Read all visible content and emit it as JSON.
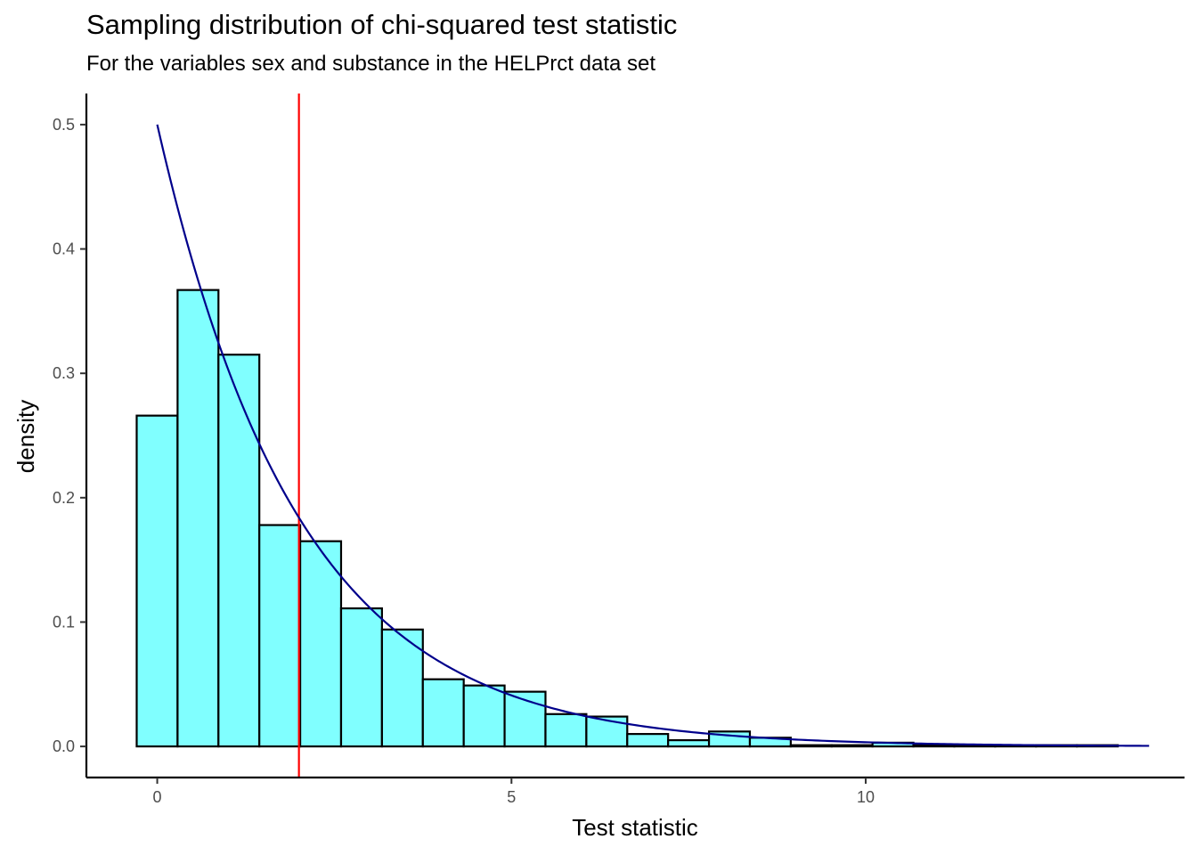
{
  "chart_data": {
    "type": "bar",
    "title": "Sampling distribution of chi-squared test statistic",
    "subtitle": "For the variables sex and substance in the HELPrct data set",
    "xlabel": "Test statistic",
    "ylabel": "density",
    "xlim": [
      -1.0,
      14.5
    ],
    "ylim": [
      -0.025,
      0.525
    ],
    "x_ticks": [
      0,
      5,
      10
    ],
    "y_ticks": [
      0.0,
      0.1,
      0.2,
      0.3,
      0.4,
      0.5
    ],
    "y_tick_labels": [
      "0.0",
      "0.1",
      "0.2",
      "0.3",
      "0.4",
      "0.5"
    ],
    "bins": {
      "start": -0.29,
      "width": 0.577,
      "densities": [
        0.266,
        0.367,
        0.315,
        0.178,
        0.165,
        0.111,
        0.094,
        0.054,
        0.049,
        0.044,
        0.026,
        0.024,
        0.01,
        0.005,
        0.012,
        0.007,
        0.001,
        0.001,
        0.003,
        0.001,
        0.001,
        0.0005,
        0.001,
        0.001
      ]
    },
    "bar_fill": "#80ffff",
    "bar_outline": "#000000",
    "reference_line": {
      "x": 2.0,
      "color": "#ff0000"
    },
    "density_curve": {
      "distribution": "chi-squared",
      "df": 2,
      "from": 0,
      "to": 14.0,
      "color": "#00008b"
    },
    "grid": false,
    "legend": "none"
  }
}
